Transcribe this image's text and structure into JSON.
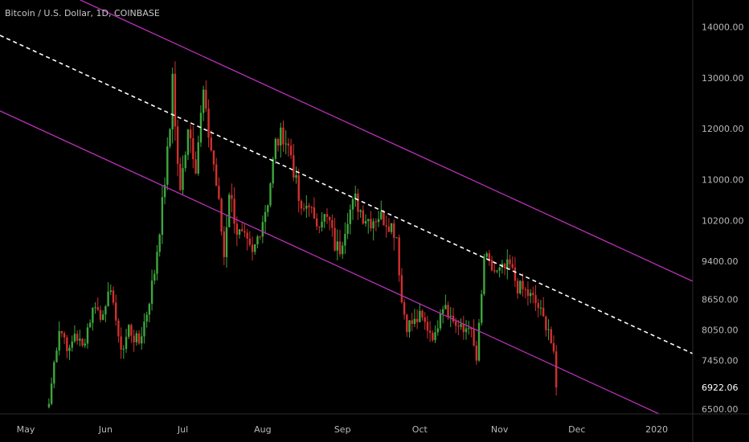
{
  "header": {
    "title": "Bitcoin / U.S. Dollar, 1D, COINBASE"
  },
  "colors": {
    "background": "#000000",
    "up": "#3ea63e",
    "down": "#d1302f",
    "channel": "#b730b7",
    "midline": "#ffffff",
    "axis": "#2b2b2b"
  },
  "price_axis": {
    "last_price_label": "6922.06"
  },
  "chart_data": {
    "type": "candlestick",
    "title": "Bitcoin / U.S. Dollar, 1D, COINBASE",
    "xlabel": "",
    "ylabel": "",
    "ylim": [
      6450,
      14400
    ],
    "y_ticks": [
      "14000.00",
      "13000.00",
      "12000.00",
      "11000.00",
      "10200.00",
      "9400.00",
      "8650.00",
      "8050.00",
      "7450.00",
      "6922.06",
      "6500.00"
    ],
    "x_ticks": [
      "May",
      "Jun",
      "Jul",
      "Aug",
      "Sep",
      "Oct",
      "Nov",
      "Dec",
      "2020"
    ],
    "x_tick_dates": [
      "2019-05-01",
      "2019-06-01",
      "2019-07-01",
      "2019-08-01",
      "2019-09-01",
      "2019-10-01",
      "2019-11-01",
      "2019-12-01",
      "2020-01-01"
    ],
    "x_range": [
      "2019-04-21",
      "2020-01-15"
    ],
    "grid": false,
    "last_price": 6922.06,
    "price_anchors": [
      [
        "2019-05-10",
        6600
      ],
      [
        "2019-05-12",
        7400
      ],
      [
        "2019-05-14",
        8100
      ],
      [
        "2019-05-16",
        7900
      ],
      [
        "2019-05-18",
        7600
      ],
      [
        "2019-05-20",
        8000
      ],
      [
        "2019-05-23",
        7700
      ],
      [
        "2019-05-25",
        8100
      ],
      [
        "2019-05-28",
        8600
      ],
      [
        "2019-05-30",
        8250
      ],
      [
        "2019-06-01",
        8650
      ],
      [
        "2019-06-04",
        8700
      ],
      [
        "2019-06-06",
        7800
      ],
      [
        "2019-06-08",
        7700
      ],
      [
        "2019-06-10",
        8100
      ],
      [
        "2019-06-12",
        7900
      ],
      [
        "2019-06-14",
        7800
      ],
      [
        "2019-06-17",
        8400
      ],
      [
        "2019-06-20",
        9200
      ],
      [
        "2019-06-23",
        10500
      ],
      [
        "2019-06-26",
        12000
      ],
      [
        "2019-06-27",
        13200
      ],
      [
        "2019-06-28",
        12000
      ],
      [
        "2019-06-30",
        10700
      ],
      [
        "2019-07-03",
        12100
      ],
      [
        "2019-07-06",
        11300
      ],
      [
        "2019-07-09",
        12700
      ],
      [
        "2019-07-10",
        12200
      ],
      [
        "2019-07-13",
        11300
      ],
      [
        "2019-07-15",
        10500
      ],
      [
        "2019-07-17",
        9500
      ],
      [
        "2019-07-19",
        10800
      ],
      [
        "2019-07-22",
        10000
      ],
      [
        "2019-07-25",
        9800
      ],
      [
        "2019-07-28",
        9500
      ],
      [
        "2019-07-31",
        10050
      ],
      [
        "2019-08-03",
        10600
      ],
      [
        "2019-08-06",
        11700
      ],
      [
        "2019-08-09",
        11900
      ],
      [
        "2019-08-12",
        11500
      ],
      [
        "2019-08-14",
        10900
      ],
      [
        "2019-08-16",
        10300
      ],
      [
        "2019-08-19",
        10600
      ],
      [
        "2019-08-21",
        10100
      ],
      [
        "2019-08-24",
        10300
      ],
      [
        "2019-08-27",
        10150
      ],
      [
        "2019-08-29",
        9700
      ],
      [
        "2019-08-31",
        9650
      ],
      [
        "2019-09-03",
        10300
      ],
      [
        "2019-09-06",
        10600
      ],
      [
        "2019-09-09",
        10300
      ],
      [
        "2019-09-12",
        10200
      ],
      [
        "2019-09-15",
        10300
      ],
      [
        "2019-09-18",
        10200
      ],
      [
        "2019-09-20",
        10100
      ],
      [
        "2019-09-22",
        9900
      ],
      [
        "2019-09-24",
        8600
      ],
      [
        "2019-09-26",
        8150
      ],
      [
        "2019-09-29",
        8200
      ],
      [
        "2019-10-01",
        8300
      ],
      [
        "2019-10-04",
        8100
      ],
      [
        "2019-10-07",
        7900
      ],
      [
        "2019-10-09",
        8500
      ],
      [
        "2019-10-11",
        8600
      ],
      [
        "2019-10-13",
        8300
      ],
      [
        "2019-10-16",
        8100
      ],
      [
        "2019-10-18",
        8000
      ],
      [
        "2019-10-20",
        8200
      ],
      [
        "2019-10-23",
        7450
      ],
      [
        "2019-10-25",
        8700
      ],
      [
        "2019-10-26",
        9500
      ],
      [
        "2019-10-28",
        9300
      ],
      [
        "2019-10-31",
        9150
      ],
      [
        "2019-11-03",
        9250
      ],
      [
        "2019-11-05",
        9300
      ],
      [
        "2019-11-08",
        8900
      ],
      [
        "2019-11-11",
        8800
      ],
      [
        "2019-11-14",
        8650
      ],
      [
        "2019-11-16",
        8500
      ],
      [
        "2019-11-18",
        8250
      ],
      [
        "2019-11-20",
        8100
      ],
      [
        "2019-11-22",
        7500
      ],
      [
        "2019-11-23",
        6922
      ]
    ]
  }
}
